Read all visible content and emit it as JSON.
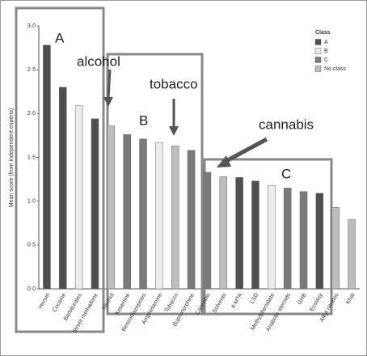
{
  "chart_data": {
    "type": "bar",
    "y_label": "Mean score (from independent experts)",
    "categories": [
      "Heroin",
      "Cocaine",
      "Barbiturates",
      "Street methadone",
      "Alcohol",
      "Ketamine",
      "Benzodiazepines",
      "Amphetamine",
      "Tobacco",
      "Buprenorphine",
      "Cannabis",
      "Solvents",
      "4-MTA",
      "LSD",
      "Methylphenidate",
      "Anabolic steroids",
      "GHB",
      "Ecstasy",
      "Alkyl nitrates",
      "Khat"
    ],
    "series": [
      {
        "name": "A",
        "color": "#4f4f4f",
        "values": [
          2.78,
          2.3,
          null,
          1.94,
          null,
          null,
          null,
          null,
          null,
          null,
          null,
          null,
          1.27,
          1.23,
          null,
          null,
          null,
          1.09,
          null,
          null
        ]
      },
      {
        "name": "B",
        "color": "#ececec",
        "values": [
          null,
          null,
          2.09,
          null,
          null,
          null,
          null,
          1.67,
          null,
          null,
          null,
          null,
          null,
          null,
          1.18,
          null,
          null,
          null,
          null,
          null
        ]
      },
      {
        "name": "C",
        "color": "#7a7a7a",
        "values": [
          null,
          null,
          null,
          null,
          null,
          1.76,
          1.71,
          null,
          null,
          1.58,
          1.33,
          null,
          null,
          null,
          null,
          1.15,
          1.11,
          null,
          null,
          null
        ]
      },
      {
        "name": "No class",
        "color": "#bdbdbd",
        "values": [
          null,
          null,
          null,
          null,
          1.86,
          null,
          null,
          null,
          1.63,
          null,
          null,
          1.28,
          null,
          null,
          null,
          null,
          null,
          null,
          0.93,
          0.79
        ]
      }
    ],
    "legend_title": "Class",
    "ylim": [
      0,
      3
    ],
    "yticks": [
      {
        "value": 0,
        "label": "0·0"
      },
      {
        "value": 0.5,
        "label": "0·5"
      },
      {
        "value": 1,
        "label": "1·0"
      },
      {
        "value": 1.5,
        "label": "1·5"
      },
      {
        "value": 2,
        "label": "2·0"
      },
      {
        "value": 2.5,
        "label": "2·5"
      },
      {
        "value": 3,
        "label": "3·0"
      }
    ],
    "annotations": [
      "A",
      "alcohol",
      "B",
      "tobacco",
      "cannabis",
      "C"
    ]
  }
}
